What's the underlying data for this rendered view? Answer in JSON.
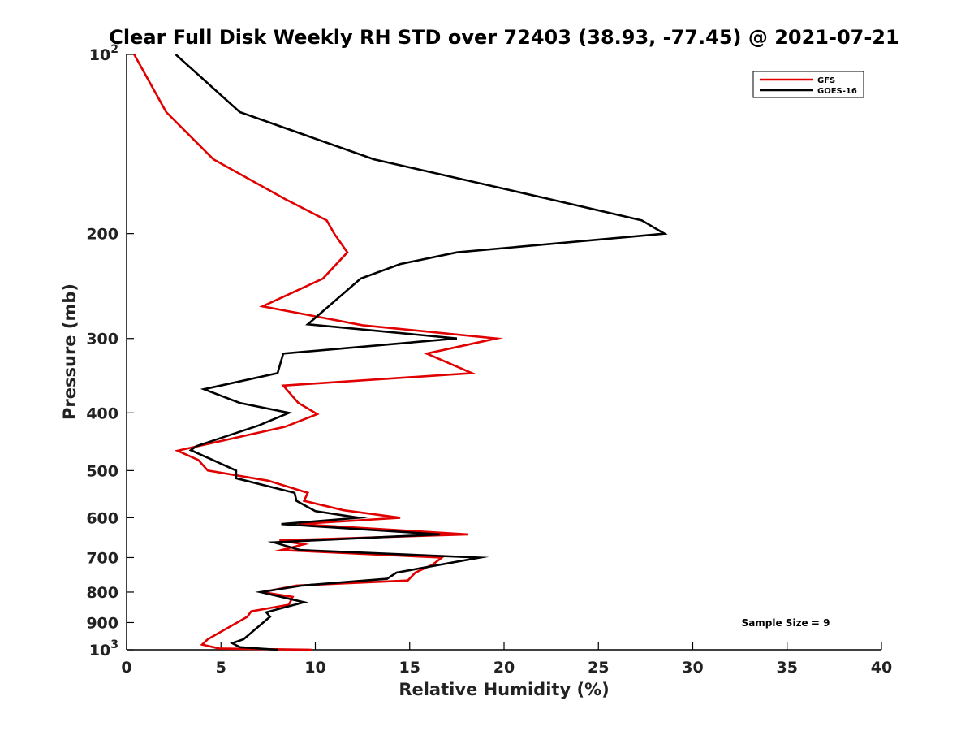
{
  "chart_data": {
    "type": "line",
    "title": "Clear Full Disk Weekly RH STD over 72403 (38.93, -77.45) @ 2021-07-21",
    "xlabel": "Relative Humidity (%)",
    "ylabel": "Pressure (mb)",
    "xlim": [
      0,
      40
    ],
    "ylim": [
      100,
      1000
    ],
    "yscale": "log",
    "yreversed": true,
    "xticks": [
      0,
      5,
      10,
      15,
      20,
      25,
      30,
      35,
      40
    ],
    "yticks": [
      {
        "value": 100,
        "base": "10",
        "exp": "2"
      },
      {
        "value": 200,
        "label": "200"
      },
      {
        "value": 300,
        "label": "300"
      },
      {
        "value": 400,
        "label": "400"
      },
      {
        "value": 500,
        "label": "500"
      },
      {
        "value": 600,
        "label": "600"
      },
      {
        "value": 700,
        "label": "700"
      },
      {
        "value": 800,
        "label": "800"
      },
      {
        "value": 900,
        "label": "900"
      },
      {
        "value": 1000,
        "base": "10",
        "exp": "3"
      }
    ],
    "grid": false,
    "legend_position": "top-right",
    "annotation": "Sample Size = 9",
    "series": [
      {
        "name": "GFS",
        "color": "#e00000",
        "points": [
          {
            "x": 0.4,
            "p": 100
          },
          {
            "x": 2.1,
            "p": 125
          },
          {
            "x": 4.6,
            "p": 150
          },
          {
            "x": 8.4,
            "p": 175
          },
          {
            "x": 10.6,
            "p": 190
          },
          {
            "x": 11.0,
            "p": 200
          },
          {
            "x": 11.7,
            "p": 215
          },
          {
            "x": 10.4,
            "p": 238
          },
          {
            "x": 7.2,
            "p": 265
          },
          {
            "x": 12.5,
            "p": 285
          },
          {
            "x": 19.6,
            "p": 300
          },
          {
            "x": 15.9,
            "p": 318
          },
          {
            "x": 18.3,
            "p": 343
          },
          {
            "x": 8.3,
            "p": 360
          },
          {
            "x": 9.1,
            "p": 385
          },
          {
            "x": 10.1,
            "p": 402
          },
          {
            "x": 8.4,
            "p": 422
          },
          {
            "x": 2.7,
            "p": 463
          },
          {
            "x": 3.8,
            "p": 480
          },
          {
            "x": 4.3,
            "p": 500
          },
          {
            "x": 7.5,
            "p": 520
          },
          {
            "x": 9.6,
            "p": 545
          },
          {
            "x": 9.4,
            "p": 562
          },
          {
            "x": 11.5,
            "p": 583
          },
          {
            "x": 14.5,
            "p": 600
          },
          {
            "x": 9.1,
            "p": 615
          },
          {
            "x": 18.1,
            "p": 640
          },
          {
            "x": 8.1,
            "p": 655
          },
          {
            "x": 9.4,
            "p": 665
          },
          {
            "x": 8.2,
            "p": 680
          },
          {
            "x": 16.7,
            "p": 700
          },
          {
            "x": 16.2,
            "p": 720
          },
          {
            "x": 15.3,
            "p": 742
          },
          {
            "x": 14.9,
            "p": 765
          },
          {
            "x": 9.0,
            "p": 780
          },
          {
            "x": 7.2,
            "p": 800
          },
          {
            "x": 8.8,
            "p": 815
          },
          {
            "x": 8.6,
            "p": 840
          },
          {
            "x": 6.6,
            "p": 862
          },
          {
            "x": 6.4,
            "p": 880
          },
          {
            "x": 4.3,
            "p": 960
          },
          {
            "x": 4.0,
            "p": 980
          },
          {
            "x": 4.9,
            "p": 995
          },
          {
            "x": 9.8,
            "p": 1000
          }
        ]
      },
      {
        "name": "GOES-16",
        "color": "#000000",
        "points": [
          {
            "x": 2.6,
            "p": 100
          },
          {
            "x": 6.0,
            "p": 125
          },
          {
            "x": 13.1,
            "p": 150
          },
          {
            "x": 22.4,
            "p": 175
          },
          {
            "x": 27.3,
            "p": 190
          },
          {
            "x": 28.5,
            "p": 200
          },
          {
            "x": 17.5,
            "p": 215
          },
          {
            "x": 14.5,
            "p": 225
          },
          {
            "x": 12.4,
            "p": 238
          },
          {
            "x": 10.7,
            "p": 265
          },
          {
            "x": 9.6,
            "p": 284
          },
          {
            "x": 17.5,
            "p": 300
          },
          {
            "x": 8.3,
            "p": 318
          },
          {
            "x": 8.0,
            "p": 343
          },
          {
            "x": 4.1,
            "p": 365
          },
          {
            "x": 6.0,
            "p": 385
          },
          {
            "x": 8.6,
            "p": 400
          },
          {
            "x": 7.0,
            "p": 420
          },
          {
            "x": 3.7,
            "p": 455
          },
          {
            "x": 3.4,
            "p": 462
          },
          {
            "x": 5.8,
            "p": 500
          },
          {
            "x": 5.8,
            "p": 515
          },
          {
            "x": 8.9,
            "p": 545
          },
          {
            "x": 9.0,
            "p": 562
          },
          {
            "x": 10.0,
            "p": 585
          },
          {
            "x": 12.3,
            "p": 600
          },
          {
            "x": 8.2,
            "p": 615
          },
          {
            "x": 16.6,
            "p": 640
          },
          {
            "x": 7.8,
            "p": 660
          },
          {
            "x": 9.2,
            "p": 680
          },
          {
            "x": 18.7,
            "p": 700
          },
          {
            "x": 14.3,
            "p": 742
          },
          {
            "x": 13.8,
            "p": 760
          },
          {
            "x": 9.3,
            "p": 780
          },
          {
            "x": 7.1,
            "p": 800
          },
          {
            "x": 9.4,
            "p": 832
          },
          {
            "x": 7.4,
            "p": 865
          },
          {
            "x": 7.6,
            "p": 880
          },
          {
            "x": 6.2,
            "p": 960
          },
          {
            "x": 5.6,
            "p": 975
          },
          {
            "x": 6.0,
            "p": 990
          },
          {
            "x": 8.0,
            "p": 1000
          }
        ]
      }
    ]
  }
}
